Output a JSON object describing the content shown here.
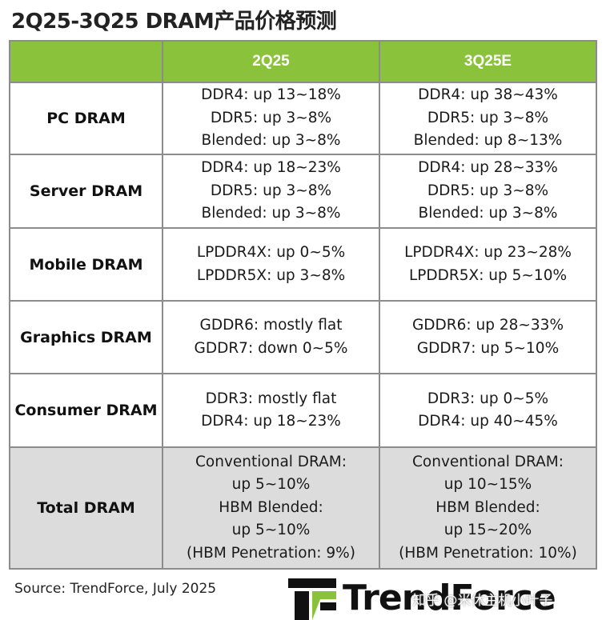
{
  "title": "2Q25-3Q25 DRAM产品价格预测",
  "table": {
    "columns": [
      "",
      "2Q25",
      "3Q25E"
    ],
    "rows": [
      {
        "category": "PC DRAM",
        "q2": [
          "DDR4: up 13~18%",
          "DDR5: up 3~8%",
          "Blended: up 3~8%"
        ],
        "q3": [
          "DDR4: up 38~43%",
          "DDR5: up 3~8%",
          "Blended: up 8~13%"
        ]
      },
      {
        "category": "Server DRAM",
        "q2": [
          "DDR4: up 18~23%",
          "DDR5: up 3~8%",
          "Blended: up 3~8%"
        ],
        "q3": [
          "DDR4: up 28~33%",
          "DDR5: up 3~8%",
          "Blended: up 3~8%"
        ]
      },
      {
        "category": "Mobile DRAM",
        "q2": [
          "LPDDR4X: up 0~5%",
          "LPDDR5X: up 3~8%"
        ],
        "q3": [
          "LPDDR4X: up 23~28%",
          "LPDDR5X: up 5~10%"
        ]
      },
      {
        "category": "Graphics DRAM",
        "q2": [
          "GDDR6: mostly flat",
          "GDDR7: down 0~5%"
        ],
        "q3": [
          "GDDR6: up 28~33%",
          "GDDR7: up 5~10%"
        ]
      },
      {
        "category": "Consumer DRAM",
        "q2": [
          "DDR3: mostly flat",
          "DDR4: up 18~23%"
        ],
        "q3": [
          "DDR3: up 0~5%",
          "DDR4: up 40~45%"
        ]
      },
      {
        "category": "Total DRAM",
        "q2": [
          "Conventional DRAM:",
          "up 5~10%",
          "HBM Blended:",
          "up 5~10%",
          "(HBM Penetration: 9%)"
        ],
        "q3": [
          "Conventional DRAM:",
          "up 10~15%",
          "HBM Blended:",
          "up 15~20%",
          "(HBM Penetration: 10%)"
        ]
      }
    ]
  },
  "source": "Source: TrendForce, July 2025",
  "brand": "TrendForce",
  "watermark": "知乎 @米休主机小叶子",
  "colors": {
    "header_bg": "#8ac23c",
    "total_bg": "#dcdcdc",
    "border": "#8c8c8c"
  }
}
